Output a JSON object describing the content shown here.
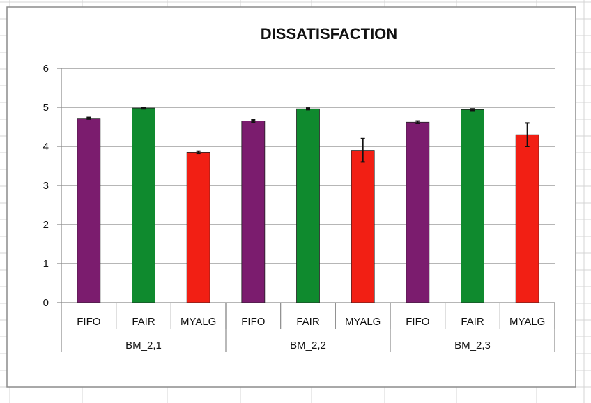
{
  "chart_data": {
    "type": "bar",
    "title": "DISSATISFACTION",
    "xlabel": "",
    "ylabel": "",
    "ylim": [
      0,
      6
    ],
    "yticks": [
      "0",
      "1",
      "2",
      "3",
      "4",
      "5",
      "6"
    ],
    "grid": true,
    "legend": "none",
    "groups": [
      "BM_2,1",
      "BM_2,2",
      "BM_2,3"
    ],
    "categories": [
      "FIFO",
      "FAIR",
      "MYALG"
    ],
    "bars": [
      {
        "group": "BM_2,1",
        "category": "FIFO",
        "value": 4.72,
        "error": 0.02,
        "color": "#7b1c6e"
      },
      {
        "group": "BM_2,1",
        "category": "FAIR",
        "value": 4.98,
        "error": 0.02,
        "color": "#0f8a2e"
      },
      {
        "group": "BM_2,1",
        "category": "MYALG",
        "value": 3.85,
        "error": 0.03,
        "color": "#f21f14"
      },
      {
        "group": "BM_2,2",
        "category": "FIFO",
        "value": 4.65,
        "error": 0.03,
        "color": "#7b1c6e"
      },
      {
        "group": "BM_2,2",
        "category": "FAIR",
        "value": 4.96,
        "error": 0.02,
        "color": "#0f8a2e"
      },
      {
        "group": "BM_2,2",
        "category": "MYALG",
        "value": 3.9,
        "error": 0.3,
        "color": "#f21f14"
      },
      {
        "group": "BM_2,3",
        "category": "FIFO",
        "value": 4.62,
        "error": 0.03,
        "color": "#7b1c6e"
      },
      {
        "group": "BM_2,3",
        "category": "FAIR",
        "value": 4.94,
        "error": 0.02,
        "color": "#0f8a2e"
      },
      {
        "group": "BM_2,3",
        "category": "MYALG",
        "value": 4.3,
        "error": 0.3,
        "color": "#f21f14"
      }
    ]
  }
}
